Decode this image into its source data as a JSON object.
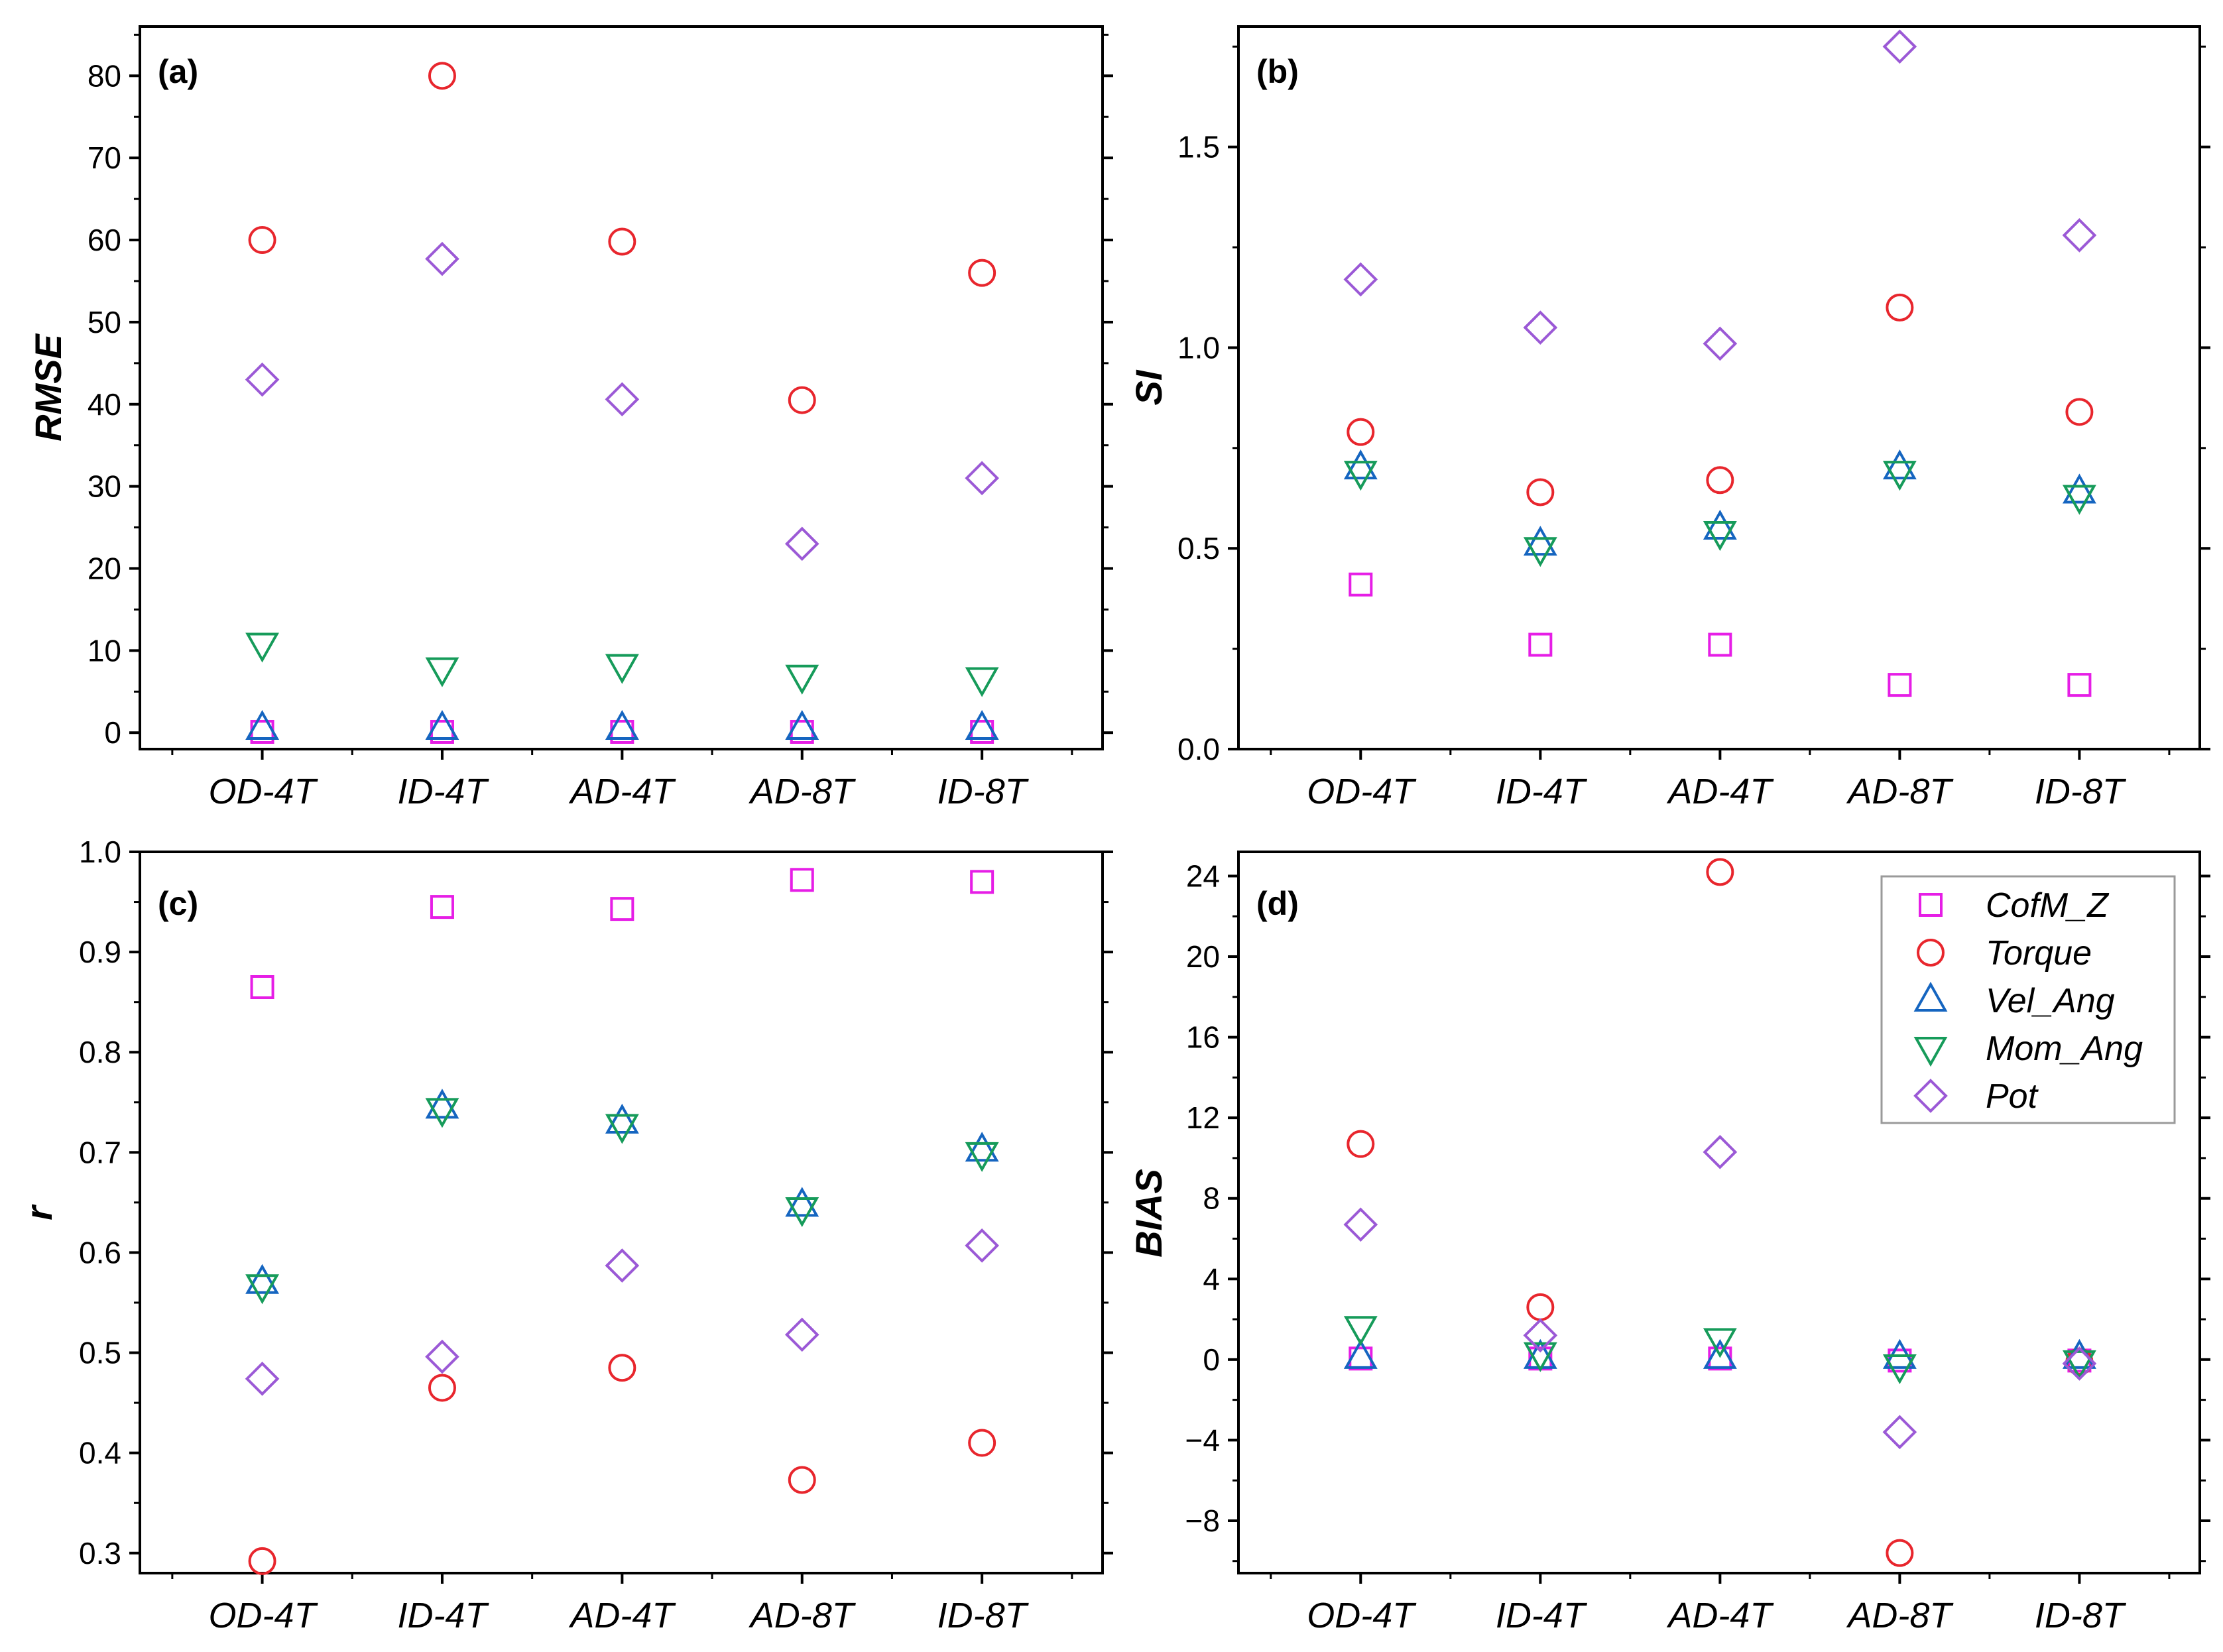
{
  "legend": [
    {
      "name": "CofM_Z",
      "marker": "square",
      "color": "#e61ee6"
    },
    {
      "name": "Torque",
      "marker": "circle",
      "color": "#e8262d"
    },
    {
      "name": "Vel_Ang",
      "marker": "triangle-up",
      "color": "#1565c0"
    },
    {
      "name": "Mom_Ang",
      "marker": "triangle-down",
      "color": "#169b5a"
    },
    {
      "name": "Pot",
      "marker": "diamond",
      "color": "#9b59d6"
    }
  ],
  "chart_data": [
    {
      "type": "scatter",
      "panel_label": "(a)",
      "title": "",
      "xlabel": "",
      "ylabel": "RMSE",
      "categories": [
        "OD-4T",
        "ID-4T",
        "AD-4T",
        "AD-8T",
        "ID-8T"
      ],
      "ylim": [
        -2,
        86
      ],
      "yticks": [
        0,
        10,
        20,
        30,
        40,
        50,
        60,
        70,
        80
      ],
      "ytick_labels": [
        "0",
        "10",
        "20",
        "30",
        "40",
        "50",
        "60",
        "70",
        "80"
      ],
      "series": [
        {
          "name": "CofM_Z",
          "values": [
            0.1,
            0.1,
            0.1,
            0.1,
            0.1
          ]
        },
        {
          "name": "Torque",
          "values": [
            60,
            80,
            59.8,
            40.5,
            56
          ]
        },
        {
          "name": "Vel_Ang",
          "values": [
            0.5,
            0.5,
            0.5,
            0.5,
            0.5
          ]
        },
        {
          "name": "Mom_Ang",
          "values": [
            10.8,
            7.8,
            8.2,
            6.9,
            6.6
          ]
        },
        {
          "name": "Pot",
          "values": [
            43,
            57.7,
            40.6,
            23,
            31
          ]
        }
      ]
    },
    {
      "type": "scatter",
      "panel_label": "(b)",
      "title": "",
      "xlabel": "",
      "ylabel": "SI",
      "categories": [
        "OD-4T",
        "ID-4T",
        "AD-4T",
        "AD-8T",
        "ID-8T"
      ],
      "ylim": [
        0,
        1.8
      ],
      "yticks": [
        0,
        0.5,
        1,
        1.5
      ],
      "ytick_labels": [
        "0.0",
        "0.5",
        "1.0",
        "1.5"
      ],
      "series": [
        {
          "name": "CofM_Z",
          "values": [
            0.41,
            0.26,
            0.26,
            0.16,
            0.16
          ]
        },
        {
          "name": "Torque",
          "values": [
            0.79,
            0.64,
            0.67,
            1.1,
            0.84
          ]
        },
        {
          "name": "Vel_Ang",
          "values": [
            0.7,
            0.51,
            0.55,
            0.7,
            0.64
          ]
        },
        {
          "name": "Mom_Ang",
          "values": [
            0.69,
            0.5,
            0.54,
            0.69,
            0.63
          ]
        },
        {
          "name": "Pot",
          "values": [
            1.17,
            1.05,
            1.01,
            1.75,
            1.28
          ]
        }
      ]
    },
    {
      "type": "scatter",
      "panel_label": "(c)",
      "title": "",
      "xlabel": "",
      "ylabel": "r",
      "categories": [
        "OD-4T",
        "ID-4T",
        "AD-4T",
        "AD-8T",
        "ID-8T"
      ],
      "ylim": [
        0.28,
        1.0
      ],
      "yticks": [
        0.3,
        0.4,
        0.5,
        0.6,
        0.7,
        0.8,
        0.9,
        1.0
      ],
      "ytick_labels": [
        "0.3",
        "0.4",
        "0.5",
        "0.6",
        "0.7",
        "0.8",
        "0.9",
        "1.0"
      ],
      "series": [
        {
          "name": "CofM_Z",
          "values": [
            0.865,
            0.945,
            0.943,
            0.972,
            0.97
          ]
        },
        {
          "name": "Torque",
          "values": [
            0.292,
            0.465,
            0.485,
            0.373,
            0.41
          ]
        },
        {
          "name": "Vel_Ang",
          "values": [
            0.57,
            0.745,
            0.73,
            0.647,
            0.702
          ]
        },
        {
          "name": "Mom_Ang",
          "values": [
            0.567,
            0.743,
            0.727,
            0.644,
            0.699
          ]
        },
        {
          "name": "Pot",
          "values": [
            0.474,
            0.496,
            0.587,
            0.518,
            0.607
          ]
        }
      ]
    },
    {
      "type": "scatter",
      "panel_label": "(d)",
      "title": "",
      "xlabel": "",
      "ylabel": "BIAS",
      "categories": [
        "OD-4T",
        "ID-4T",
        "AD-4T",
        "AD-8T",
        "ID-8T"
      ],
      "ylim": [
        -10.6,
        25.2
      ],
      "yticks": [
        -8,
        -4,
        0,
        4,
        8,
        12,
        16,
        20,
        24
      ],
      "ytick_labels": [
        "−8",
        "−4",
        "0",
        "4",
        "8",
        "12",
        "16",
        "20",
        "24"
      ],
      "legend_position": "top-right",
      "series": [
        {
          "name": "CofM_Z",
          "values": [
            0.05,
            0.05,
            0.05,
            -0.05,
            -0.05
          ]
        },
        {
          "name": "Torque",
          "values": [
            10.7,
            2.6,
            24.2,
            -9.6,
            -0.1
          ]
        },
        {
          "name": "Vel_Ang",
          "values": [
            0.1,
            0.1,
            0.1,
            0.1,
            0.1
          ]
        },
        {
          "name": "Mom_Ang",
          "values": [
            1.6,
            0.3,
            1.0,
            -0.3,
            -0.1
          ]
        },
        {
          "name": "Pot",
          "values": [
            6.7,
            1.2,
            10.3,
            -3.6,
            -0.2
          ]
        }
      ]
    }
  ]
}
